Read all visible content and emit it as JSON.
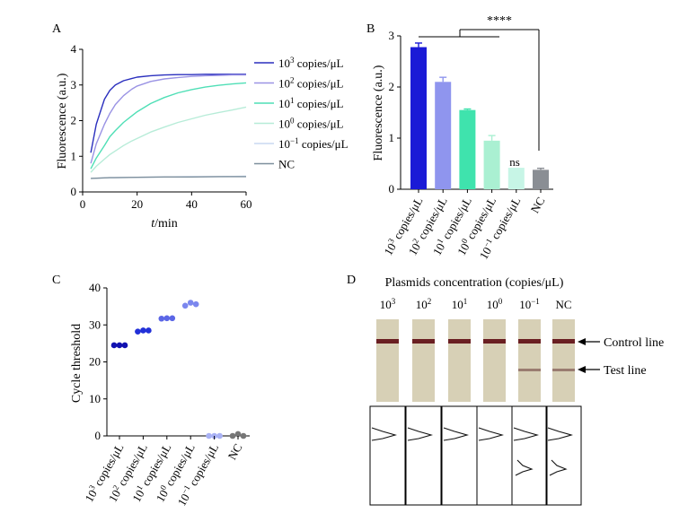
{
  "panels": {
    "a": {
      "label": "A",
      "xlabel_var": "t",
      "xlabel_unit": "/min",
      "ylabel": "Fluorescence (a.u.)",
      "legend": [
        {
          "base": "10",
          "exp": "3",
          "suffix": " copies/μL"
        },
        {
          "base": "10",
          "exp": "2",
          "suffix": " copies/μL"
        },
        {
          "base": "10",
          "exp": "1",
          "suffix": " copies/μL"
        },
        {
          "base": "10",
          "exp": "0",
          "suffix": " copies/μL"
        },
        {
          "base": "10",
          "exp": "−1",
          "suffix": " copies/μL"
        },
        {
          "base": "NC",
          "exp": "",
          "suffix": ""
        }
      ]
    },
    "b": {
      "label": "B",
      "ylabel": "Fluorescence (a.u.)",
      "significance": "****",
      "ns_label": "ns"
    },
    "c": {
      "label": "C",
      "ylabel": "Cycle threshold"
    },
    "d": {
      "label": "D",
      "title": "Plasmids concentration (copies/μL)",
      "control_label": "Control line",
      "test_label": "Test line",
      "columns": [
        {
          "base": "10",
          "exp": "3"
        },
        {
          "base": "10",
          "exp": "2"
        },
        {
          "base": "10",
          "exp": "1"
        },
        {
          "base": "10",
          "exp": "0"
        },
        {
          "base": "10",
          "exp": "−1"
        },
        {
          "base": "NC",
          "exp": ""
        }
      ],
      "test_line_visible": [
        false,
        false,
        false,
        false,
        true,
        true
      ]
    }
  },
  "chart_data": [
    {
      "panel": "A",
      "type": "line",
      "xlabel": "t/min",
      "ylabel": "Fluorescence (a.u.)",
      "xlim": [
        0,
        60
      ],
      "ylim": [
        0,
        4
      ],
      "xticks": [
        0,
        20,
        40,
        60
      ],
      "yticks": [
        0,
        1,
        2,
        3,
        4
      ],
      "grid": false,
      "legend_position": "right",
      "series": [
        {
          "name": "10^3 copies/μL",
          "color": "#2a2fbe",
          "x": [
            3,
            5,
            8,
            10,
            12,
            15,
            18,
            20,
            25,
            30,
            35,
            40,
            45,
            50,
            55,
            60
          ],
          "y": [
            1.1,
            1.9,
            2.6,
            2.85,
            3.0,
            3.12,
            3.18,
            3.22,
            3.26,
            3.28,
            3.29,
            3.29,
            3.3,
            3.3,
            3.3,
            3.3
          ]
        },
        {
          "name": "10^2 copies/μL",
          "color": "#9a93e4",
          "x": [
            3,
            5,
            8,
            10,
            12,
            15,
            18,
            20,
            25,
            30,
            35,
            40,
            45,
            50,
            55,
            60
          ],
          "y": [
            0.8,
            1.35,
            1.9,
            2.2,
            2.45,
            2.7,
            2.88,
            2.97,
            3.1,
            3.17,
            3.21,
            3.24,
            3.26,
            3.27,
            3.28,
            3.28
          ]
        },
        {
          "name": "10^1 copies/μL",
          "color": "#4fdfb6",
          "x": [
            3,
            5,
            8,
            10,
            12,
            15,
            18,
            20,
            25,
            30,
            35,
            40,
            45,
            50,
            55,
            60
          ],
          "y": [
            0.65,
            0.95,
            1.3,
            1.55,
            1.72,
            1.95,
            2.13,
            2.25,
            2.48,
            2.65,
            2.78,
            2.87,
            2.94,
            2.99,
            3.03,
            3.06
          ]
        },
        {
          "name": "10^0 copies/μL",
          "color": "#b7ecd8",
          "x": [
            3,
            5,
            8,
            10,
            12,
            15,
            18,
            20,
            25,
            30,
            35,
            40,
            45,
            50,
            55,
            60
          ],
          "y": [
            0.55,
            0.72,
            0.92,
            1.05,
            1.15,
            1.3,
            1.43,
            1.5,
            1.68,
            1.82,
            1.95,
            2.05,
            2.15,
            2.23,
            2.3,
            2.38
          ]
        },
        {
          "name": "10^-1 copies/μL",
          "color": "#c9d8f0",
          "x": [
            3,
            10,
            20,
            30,
            40,
            50,
            60
          ],
          "y": [
            0.38,
            0.4,
            0.41,
            0.42,
            0.43,
            0.43,
            0.44
          ]
        },
        {
          "name": "NC",
          "color": "#7d8f9c",
          "x": [
            3,
            10,
            20,
            30,
            40,
            50,
            60
          ],
          "y": [
            0.38,
            0.4,
            0.41,
            0.42,
            0.42,
            0.43,
            0.43
          ]
        }
      ]
    },
    {
      "panel": "B",
      "type": "bar",
      "ylabel": "Fluorescence (a.u.)",
      "ylim": [
        0,
        3
      ],
      "yticks": [
        0,
        1,
        2,
        3
      ],
      "categories": [
        {
          "base": "10",
          "exp": "3",
          "suffix": " copies/μL"
        },
        {
          "base": "10",
          "exp": "2",
          "suffix": " copies/μL"
        },
        {
          "base": "10",
          "exp": "1",
          "suffix": " copies/μL"
        },
        {
          "base": "10",
          "exp": "0",
          "suffix": " copies/μL"
        },
        {
          "base": "10",
          "exp": "−1",
          "suffix": " copies/μL"
        },
        {
          "base": "NC",
          "exp": "",
          "suffix": ""
        }
      ],
      "values": [
        2.78,
        2.1,
        1.55,
        0.95,
        0.42,
        0.38
      ],
      "errors": [
        0.08,
        0.09,
        0.02,
        0.1,
        0.0,
        0.03
      ],
      "colors": [
        "#1a1ad6",
        "#8f95ee",
        "#3fe3ad",
        "#aaf0d2",
        "#c7f5e6",
        "#8a8e94"
      ],
      "annotations": [
        "****",
        "ns"
      ]
    },
    {
      "panel": "C",
      "type": "scatter",
      "ylabel": "Cycle threshold",
      "ylim": [
        0,
        40
      ],
      "yticks": [
        0,
        10,
        20,
        30,
        40
      ],
      "categories": [
        {
          "base": "10",
          "exp": "3",
          "suffix": " copies/μL"
        },
        {
          "base": "10",
          "exp": "2",
          "suffix": " copies/μL"
        },
        {
          "base": "10",
          "exp": "1",
          "suffix": " copies/μL"
        },
        {
          "base": "10",
          "exp": "0",
          "suffix": " copies/μL"
        },
        {
          "base": "10",
          "exp": "−1",
          "suffix": " copies/μL"
        },
        {
          "base": "NC",
          "exp": "",
          "suffix": ""
        }
      ],
      "replicates": [
        [
          24.5,
          24.5,
          24.5
        ],
        [
          28.2,
          28.5,
          28.5
        ],
        [
          31.7,
          31.8,
          31.8
        ],
        [
          35.2,
          36.0,
          35.6
        ],
        [
          0,
          0,
          0
        ],
        [
          0,
          0.5,
          0
        ]
      ],
      "colors": [
        "#1111b0",
        "#2230d8",
        "#5b66e6",
        "#7b87ee",
        "#a9b2f5",
        "#777777"
      ]
    }
  ]
}
